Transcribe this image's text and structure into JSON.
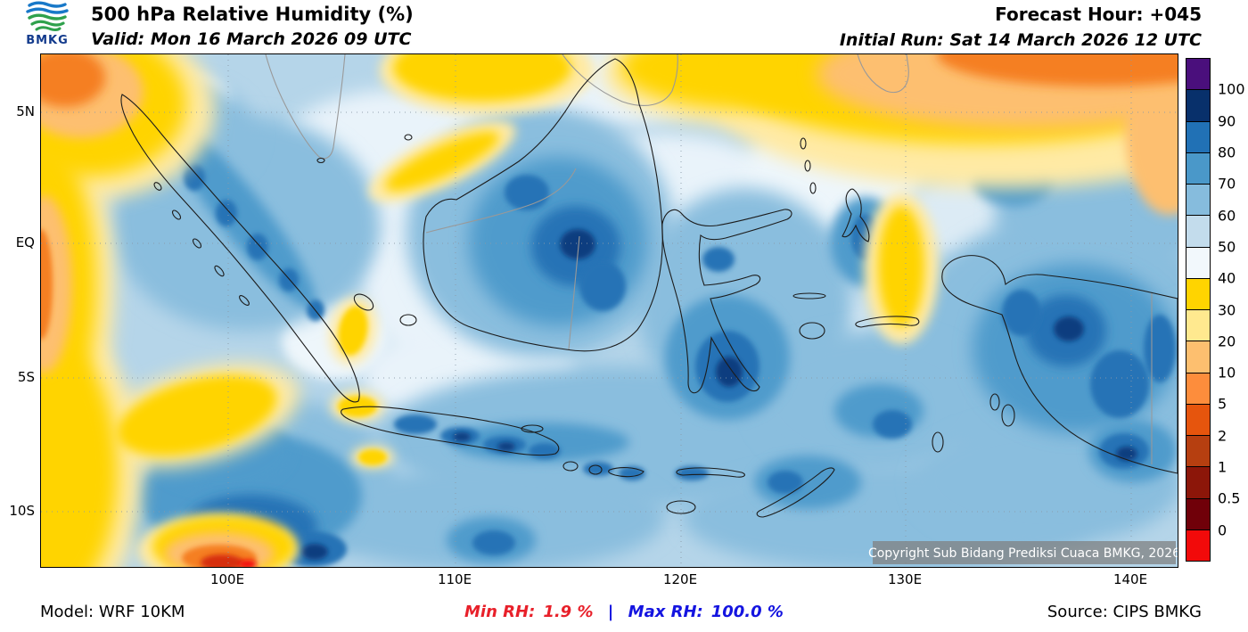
{
  "header": {
    "logo_text": "BMKG",
    "title": "500 hPa Relative Humidity (%)",
    "valid_line": "Valid: Mon 16 March 2026 09 UTC",
    "forecast_hour": "Forecast Hour: +045",
    "initial_run": "Initial Run: Sat 14 March 2026 12 UTC"
  },
  "map": {
    "lat_labels": [
      "5N",
      "EQ",
      "5S",
      "10S"
    ],
    "lon_labels": [
      "100E",
      "110E",
      "120E",
      "130E",
      "140E"
    ],
    "copyright": "Copyright Sub Bidang Prediksi Cuaca BMKG, 2026"
  },
  "colorbar": {
    "labels": [
      "100",
      "90",
      "80",
      "70",
      "60",
      "50",
      "40",
      "30",
      "20",
      "10",
      "5",
      "2",
      "1",
      "0.5",
      "0"
    ],
    "colors": [
      "#4a0f7c",
      "#08306b",
      "#2171b5",
      "#4a98c9",
      "#86bcdd",
      "#c3dcec",
      "#f2f8fc",
      "#ffd400",
      "#ffe98f",
      "#fdbf6f",
      "#fd8d3c",
      "#e6550d",
      "#b63f10",
      "#8c1609",
      "#700009",
      "#f20a0a"
    ]
  },
  "footer": {
    "model": "Model: WRF 10KM",
    "min_label": "Min RH:",
    "min_value": "1.9 %",
    "separator": "|",
    "max_label": "Max RH:",
    "max_value": "100.0 %",
    "source": "Source: CIPS BMKG"
  },
  "theme": {
    "min-red": "#e8202a",
    "max-blue": "#1414e0"
  },
  "chart_data": {
    "type": "heatmap",
    "title": "500 hPa Relative Humidity (%)",
    "colorbar_levels": [
      0,
      0.5,
      1,
      2,
      5,
      10,
      20,
      30,
      40,
      50,
      60,
      70,
      80,
      90,
      100
    ],
    "lat_ticks": [
      "5N",
      "EQ",
      "5S",
      "10S"
    ],
    "lon_ticks": [
      "100E",
      "110E",
      "120E",
      "130E",
      "140E"
    ],
    "min_rh_percent": 1.9,
    "max_rh_percent": 100.0
  }
}
